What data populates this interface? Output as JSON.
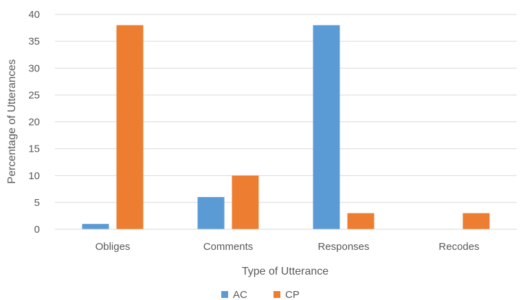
{
  "chart_data": {
    "type": "bar",
    "title": "",
    "xlabel": "Type of Utterance",
    "ylabel": "Percentage of Utterances",
    "categories": [
      "Obliges",
      "Comments",
      "Responses",
      "Recodes"
    ],
    "series": [
      {
        "name": "AC",
        "color": "#5b9bd5",
        "values": [
          1,
          6,
          38,
          0
        ]
      },
      {
        "name": "CP",
        "color": "#ed7d31",
        "values": [
          38,
          10,
          3,
          3
        ]
      }
    ],
    "ylim": [
      0,
      40
    ],
    "yticks": [
      "0",
      "5",
      "10",
      "15",
      "20",
      "25",
      "30",
      "35",
      "40"
    ],
    "grid": true,
    "legend_position": "bottom"
  }
}
